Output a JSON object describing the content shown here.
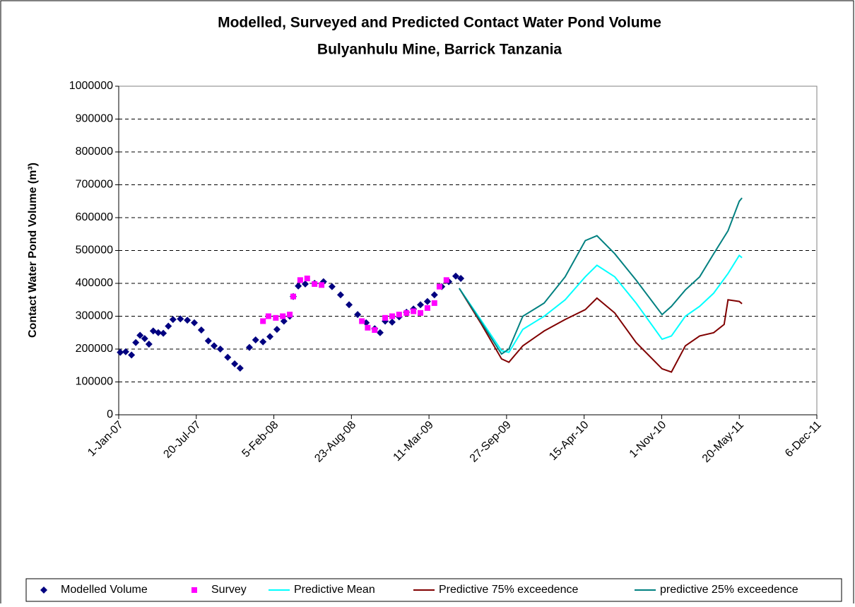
{
  "chart_data": {
    "type": "line",
    "title": "Modelled, Surveyed and Predicted Contact Water Pond Volume",
    "subtitle": "Bulyanhulu Mine, Barrick Tanzania",
    "y_label": "Contact Water Pond Volume (m³)",
    "ylim": [
      0,
      1000000
    ],
    "yticks": [
      0,
      100000,
      200000,
      300000,
      400000,
      500000,
      600000,
      700000,
      800000,
      900000,
      1000000
    ],
    "xlim": [
      "2007-01-01",
      "2011-12-06"
    ],
    "xticks": [
      {
        "value": "2007-01-01",
        "label": "1-Jan-07"
      },
      {
        "value": "2007-07-20",
        "label": "20-Jul-07"
      },
      {
        "value": "2008-02-05",
        "label": "5-Feb-08"
      },
      {
        "value": "2008-08-23",
        "label": "23-Aug-08"
      },
      {
        "value": "2009-03-11",
        "label": "11-Mar-09"
      },
      {
        "value": "2009-09-27",
        "label": "27-Sep-09"
      },
      {
        "value": "2010-04-15",
        "label": "15-Apr-10"
      },
      {
        "value": "2010-11-01",
        "label": "1-Nov-10"
      },
      {
        "value": "2011-05-20",
        "label": "20-May-11"
      },
      {
        "value": "2011-12-06",
        "label": "6-Dec-11"
      }
    ],
    "grid": true,
    "legend": "bottom",
    "series": [
      {
        "name": "Modelled Volume",
        "color": "#000080",
        "style": "diamond",
        "x": [
          "2007-01-05",
          "2007-01-19",
          "2007-02-03",
          "2007-02-14",
          "2007-02-25",
          "2007-03-09",
          "2007-03-20",
          "2007-03-31",
          "2007-04-13",
          "2007-04-26",
          "2007-05-09",
          "2007-05-21",
          "2007-06-09",
          "2007-06-27",
          "2007-07-15",
          "2007-08-02",
          "2007-08-20",
          "2007-09-04",
          "2007-09-20",
          "2007-10-09",
          "2007-10-27",
          "2007-11-10",
          "2007-12-04",
          "2007-12-20",
          "2008-01-08",
          "2008-01-26",
          "2008-02-13",
          "2008-03-02",
          "2008-03-17",
          "2008-03-26",
          "2008-04-08",
          "2008-04-26",
          "2008-05-20",
          "2008-06-12",
          "2008-07-04",
          "2008-07-26",
          "2008-08-17",
          "2008-09-08",
          "2008-09-30",
          "2008-10-22",
          "2008-11-05",
          "2008-11-18",
          "2008-12-06",
          "2008-12-24",
          "2009-01-12",
          "2009-01-30",
          "2009-02-17",
          "2009-03-07",
          "2009-03-25",
          "2009-04-13",
          "2009-05-01",
          "2009-05-19",
          "2009-06-01"
        ],
        "values": [
          190000,
          192000,
          182000,
          220000,
          242000,
          232000,
          215000,
          255000,
          250000,
          248000,
          270000,
          290000,
          292000,
          288000,
          280000,
          258000,
          225000,
          210000,
          200000,
          175000,
          155000,
          142000,
          205000,
          228000,
          222000,
          238000,
          260000,
          285000,
          300000,
          360000,
          392000,
          398000,
          400000,
          405000,
          390000,
          365000,
          335000,
          305000,
          280000,
          262000,
          250000,
          285000,
          282000,
          298000,
          312000,
          322000,
          335000,
          345000,
          365000,
          390000,
          405000,
          422000,
          415000
        ]
      },
      {
        "name": "Survey",
        "color": "#FF00FF",
        "style": "square",
        "x": [
          "2008-01-08",
          "2008-01-22",
          "2008-02-10",
          "2008-02-28",
          "2008-03-17",
          "2008-03-26",
          "2008-04-13",
          "2008-05-01",
          "2008-05-20",
          "2008-06-07",
          "2008-09-19",
          "2008-10-04",
          "2008-10-22",
          "2008-11-18",
          "2008-12-06",
          "2008-12-24",
          "2009-01-12",
          "2009-01-30",
          "2009-02-17",
          "2009-03-07",
          "2009-03-25",
          "2009-04-07",
          "2009-04-25"
        ],
        "values": [
          285000,
          300000,
          295000,
          300000,
          305000,
          360000,
          410000,
          415000,
          398000,
          395000,
          285000,
          265000,
          258000,
          295000,
          300000,
          305000,
          310000,
          315000,
          310000,
          325000,
          340000,
          390000,
          410000
        ]
      },
      {
        "name": "Predictive Mean",
        "color": "#00FFFF",
        "style": "line",
        "x": [
          "2009-05-28",
          "2009-07-22",
          "2009-09-14",
          "2009-10-03",
          "2009-11-08",
          "2010-01-02",
          "2010-02-25",
          "2010-04-18",
          "2010-05-18",
          "2010-07-03",
          "2010-08-27",
          "2010-11-02",
          "2010-11-26",
          "2011-01-01",
          "2011-02-07",
          "2011-03-15",
          "2011-04-21",
          "2011-05-20",
          "2011-05-27"
        ],
        "values": [
          385000,
          290000,
          195000,
          190000,
          260000,
          300000,
          350000,
          420000,
          455000,
          420000,
          340000,
          230000,
          240000,
          300000,
          330000,
          370000,
          430000,
          485000,
          478000
        ]
      },
      {
        "name": "Predictive 75% exceedence",
        "color": "#800000",
        "style": "line",
        "x": [
          "2009-05-28",
          "2009-07-22",
          "2009-09-14",
          "2009-10-03",
          "2009-11-08",
          "2010-01-02",
          "2010-02-25",
          "2010-04-18",
          "2010-05-18",
          "2010-07-03",
          "2010-08-27",
          "2010-11-02",
          "2010-11-26",
          "2011-01-01",
          "2011-02-07",
          "2011-03-15",
          "2011-04-11",
          "2011-04-21",
          "2011-05-20",
          "2011-05-27"
        ],
        "values": [
          385000,
          280000,
          170000,
          160000,
          210000,
          255000,
          290000,
          320000,
          355000,
          310000,
          220000,
          140000,
          130000,
          210000,
          240000,
          250000,
          275000,
          350000,
          345000,
          338000
        ]
      },
      {
        "name": "predictive 25% exceedence",
        "color": "#008080",
        "style": "line",
        "x": [
          "2009-05-28",
          "2009-07-22",
          "2009-09-14",
          "2009-10-03",
          "2009-11-08",
          "2010-01-02",
          "2010-02-25",
          "2010-04-18",
          "2010-05-18",
          "2010-07-03",
          "2010-08-27",
          "2010-11-02",
          "2010-11-26",
          "2011-01-01",
          "2011-02-07",
          "2011-03-15",
          "2011-04-21",
          "2011-05-20",
          "2011-05-27"
        ],
        "values": [
          385000,
          285000,
          185000,
          200000,
          300000,
          340000,
          420000,
          530000,
          545000,
          490000,
          410000,
          305000,
          330000,
          380000,
          420000,
          490000,
          560000,
          650000,
          660000
        ]
      }
    ]
  }
}
